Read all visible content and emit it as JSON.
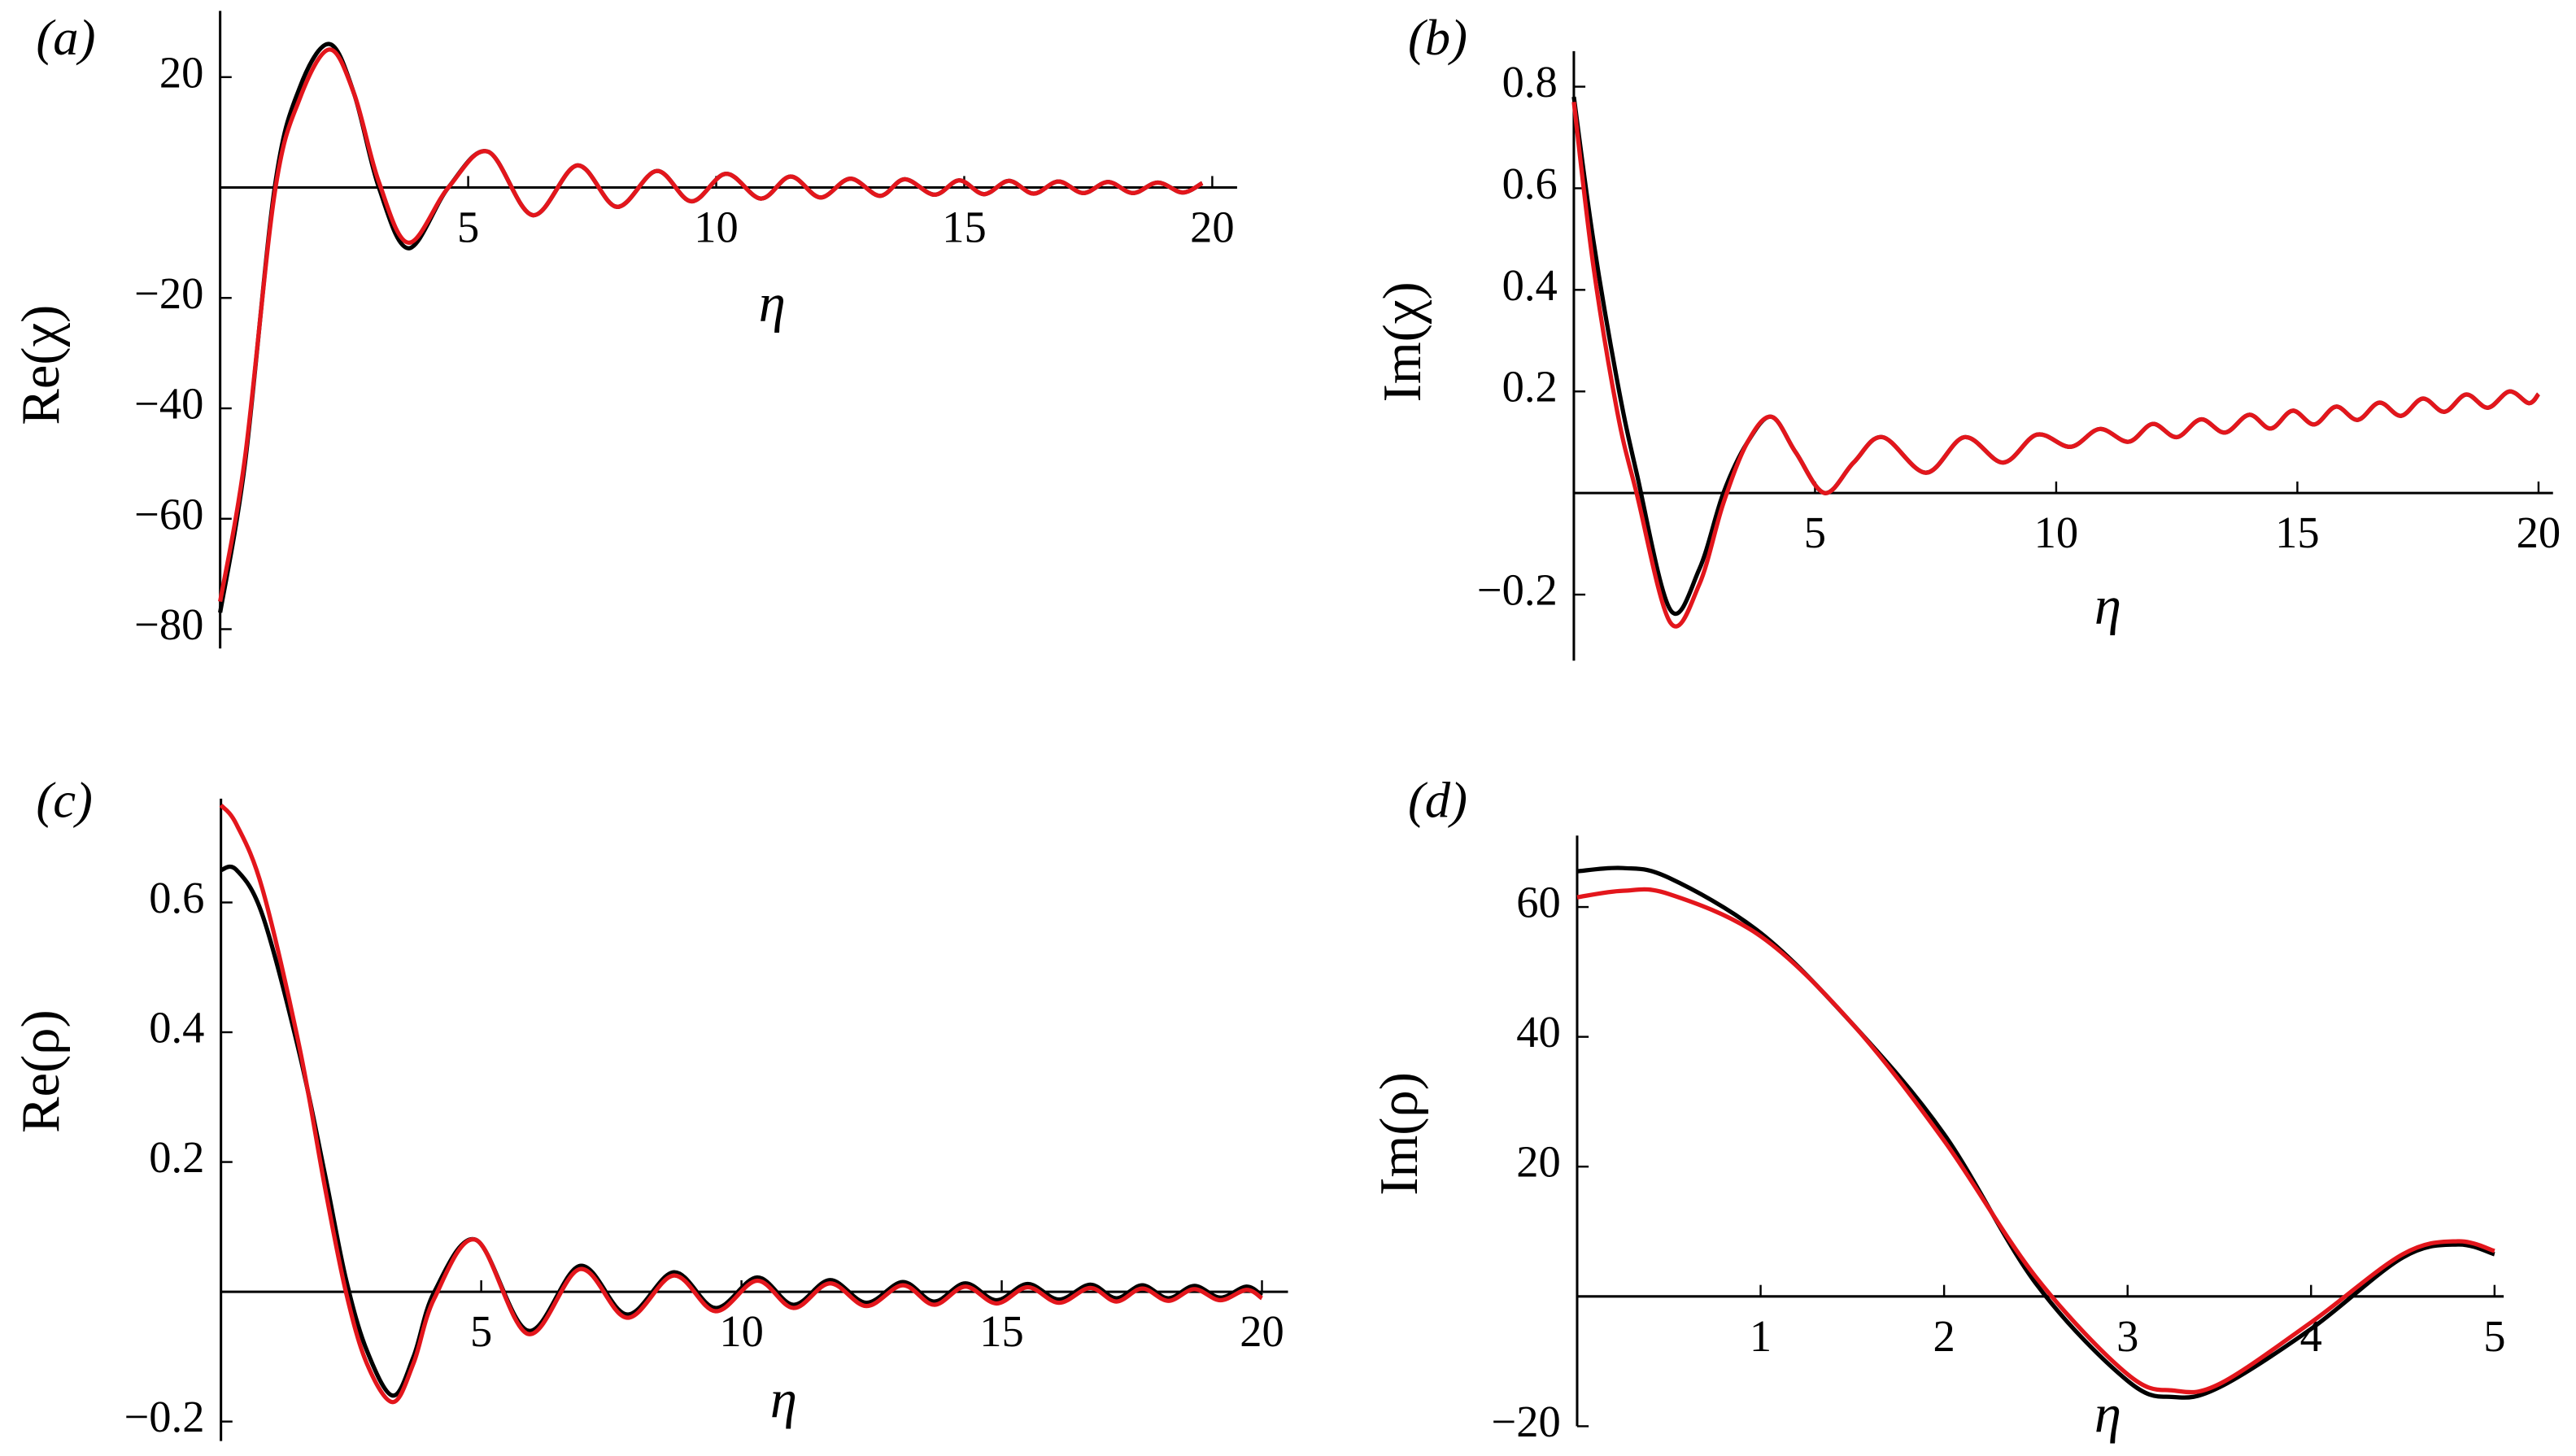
{
  "chart_data": [
    {
      "type": "line",
      "panel_label": "(a)",
      "x_label": "η",
      "y_label": "Re(χ)",
      "xlim": [
        0,
        20.5
      ],
      "ylim": [
        -83.5,
        32
      ],
      "xticks": [
        5,
        10,
        15,
        20
      ],
      "yticks": [
        20,
        {
          "value": -20,
          "label": "−20"
        },
        {
          "value": -40,
          "label": "−40"
        },
        {
          "value": -60,
          "label": "−60"
        },
        {
          "value": -80,
          "label": "−80"
        }
      ],
      "x": [
        0,
        0.5,
        1.1,
        1.6,
        2.2,
        2.7,
        3.2,
        3.8,
        4.6,
        5.4,
        6.3,
        7.2,
        8.0,
        8.8,
        9.5,
        10.2,
        10.9,
        11.5,
        12.1,
        12.7,
        13.3,
        13.8,
        14.4,
        14.9,
        15.4,
        15.9,
        16.4,
        16.9,
        17.4,
        17.9,
        18.4,
        18.9,
        19.4,
        19.8
      ],
      "series": [
        {
          "color": "#000000",
          "values": [
            -77,
            -50,
            0,
            18,
            26,
            17,
            0,
            -11,
            0,
            6.5,
            -5,
            4,
            -3.5,
            3,
            -2.5,
            2.5,
            -2,
            2,
            -1.8,
            1.6,
            -1.5,
            1.5,
            -1.3,
            1.3,
            -1.2,
            1.2,
            -1.1,
            1.1,
            -1,
            1,
            -1,
            0.9,
            -0.9,
            0.8
          ]
        },
        {
          "color": "#e3161c",
          "values": [
            -75,
            -49,
            -1,
            16,
            25,
            17,
            1,
            -10,
            0,
            6.5,
            -5,
            4,
            -3.5,
            3,
            -2.5,
            2.5,
            -2,
            2,
            -1.8,
            1.6,
            -1.5,
            1.5,
            -1.3,
            1.3,
            -1.2,
            1.2,
            -1.1,
            1.1,
            -1,
            1,
            -1,
            0.9,
            -0.9,
            0.8
          ]
        }
      ]
    },
    {
      "type": "line",
      "panel_label": "(b)",
      "x_label": "η",
      "y_label": "Im(χ)",
      "xlim": [
        0,
        20.3
      ],
      "ylim": [
        -0.33,
        0.87
      ],
      "xticks": [
        5,
        10,
        15,
        20
      ],
      "yticks": [
        {
          "value": -0.2,
          "label": "−0.2"
        },
        0.2,
        0.4,
        0.6,
        0.8
      ],
      "x": [
        0,
        0.4,
        0.9,
        1.3,
        2.0,
        2.6,
        3.1,
        3.6,
        4.1,
        4.6,
        5.2,
        5.8,
        6.4,
        7.3,
        8.1,
        8.9,
        9.6,
        10.3,
        10.9,
        11.5,
        12.0,
        12.5,
        13.0,
        13.5,
        14.0,
        14.45,
        14.9,
        15.35,
        15.8,
        16.25,
        16.7,
        17.15,
        17.6,
        18.05,
        18.5,
        18.95,
        19.4,
        19.8,
        20
      ],
      "series": [
        {
          "color": "#000000",
          "values": [
            0.78,
            0.5,
            0.22,
            0.04,
            -0.23,
            -0.15,
            0,
            0.1,
            0.15,
            0.08,
            0.0,
            0.06,
            0.11,
            0.04,
            0.11,
            0.06,
            0.115,
            0.091,
            0.126,
            0.101,
            0.136,
            0.11,
            0.145,
            0.119,
            0.154,
            0.127,
            0.162,
            0.135,
            0.17,
            0.144,
            0.178,
            0.152,
            0.186,
            0.16,
            0.194,
            0.168,
            0.2,
            0.177,
            0.195
          ]
        },
        {
          "color": "#e3161c",
          "values": [
            0.77,
            0.45,
            0.16,
            0.0,
            -0.255,
            -0.18,
            -0.02,
            0.1,
            0.15,
            0.08,
            0.0,
            0.06,
            0.11,
            0.04,
            0.11,
            0.06,
            0.115,
            0.091,
            0.126,
            0.101,
            0.136,
            0.11,
            0.145,
            0.119,
            0.154,
            0.127,
            0.162,
            0.135,
            0.17,
            0.144,
            0.178,
            0.152,
            0.186,
            0.16,
            0.194,
            0.168,
            0.2,
            0.177,
            0.195
          ]
        }
      ]
    },
    {
      "type": "line",
      "panel_label": "(c)",
      "x_label": "η",
      "y_label": "Re(ρ)",
      "xlim": [
        0,
        20.5
      ],
      "ylim": [
        -0.23,
        0.76
      ],
      "xticks": [
        5,
        10,
        15,
        20
      ],
      "yticks": [
        {
          "value": -0.2,
          "label": "−0.2"
        },
        0.2,
        0.4,
        0.6
      ],
      "x": [
        0,
        0.3,
        0.8,
        1.5,
        2.0,
        2.4,
        2.8,
        3.3,
        3.7,
        4.1,
        4.9,
        5.9,
        6.9,
        7.8,
        8.7,
        9.5,
        10.3,
        11.0,
        11.7,
        12.4,
        13.1,
        13.7,
        14.3,
        14.9,
        15.5,
        16.1,
        16.7,
        17.2,
        17.7,
        18.2,
        18.7,
        19.2,
        19.7,
        20
      ],
      "series": [
        {
          "color": "#000000",
          "values": [
            0.65,
            0.65,
            0.58,
            0.37,
            0.18,
            0.02,
            -0.09,
            -0.16,
            -0.1,
            0,
            0.08,
            -0.06,
            0.04,
            -0.035,
            0.03,
            -0.025,
            0.022,
            -0.02,
            0.018,
            -0.017,
            0.015,
            -0.015,
            0.013,
            -0.013,
            0.012,
            -0.012,
            0.011,
            -0.01,
            0.01,
            -0.01,
            0.009,
            -0.009,
            0.008,
            -0.006
          ]
        },
        {
          "color": "#e3161c",
          "values": [
            0.75,
            0.72,
            0.62,
            0.38,
            0.16,
            0.0,
            -0.11,
            -0.17,
            -0.11,
            -0.01,
            0.08,
            -0.065,
            0.035,
            -0.04,
            0.025,
            -0.03,
            0.017,
            -0.025,
            0.013,
            -0.022,
            0.01,
            -0.02,
            0.008,
            -0.018,
            0.007,
            -0.017,
            0.006,
            -0.015,
            0.005,
            -0.014,
            0.004,
            -0.013,
            0.003,
            -0.01
          ]
        }
      ]
    },
    {
      "type": "line",
      "panel_label": "(d)",
      "x_label": "η",
      "y_label": "Im(ρ)",
      "xlim": [
        0,
        5.05
      ],
      "ylim": [
        -20,
        71
      ],
      "xticks": [
        1,
        2,
        3,
        4,
        5
      ],
      "yticks": [
        {
          "value": -20,
          "label": "−20"
        },
        20,
        40,
        60
      ],
      "x": [
        0,
        0.25,
        0.5,
        1,
        1.5,
        2,
        2.5,
        3,
        3.25,
        3.5,
        4,
        4.5,
        4.8,
        5
      ],
      "series": [
        {
          "color": "#000000",
          "values": [
            65.5,
            66,
            64.5,
            56,
            42,
            25,
            2,
            -13,
            -15.5,
            -14,
            -5,
            6,
            8,
            6.5
          ]
        },
        {
          "color": "#e3161c",
          "values": [
            61.5,
            62.5,
            62,
            55.5,
            42,
            24,
            3,
            -12,
            -14.5,
            -13.5,
            -4,
            6.5,
            8.5,
            7
          ]
        }
      ]
    }
  ]
}
